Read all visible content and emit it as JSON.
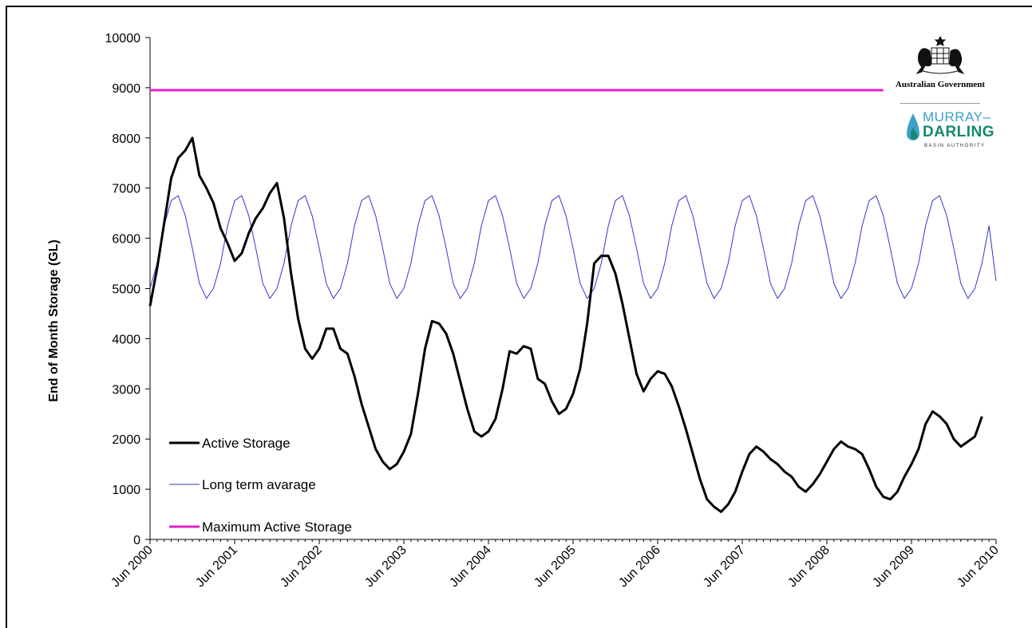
{
  "chart_data": {
    "type": "line",
    "title": "",
    "xlabel": "",
    "ylabel": "End of Month Storage (GL)",
    "ylim": [
      0,
      10000
    ],
    "yticks": [
      "0",
      "1000",
      "2000",
      "3000",
      "4000",
      "5000",
      "6000",
      "7000",
      "8000",
      "9000",
      "10000"
    ],
    "xlim": [
      "2000-06",
      "2010-06"
    ],
    "xticks": [
      "Jun 2000",
      "Jun 2001",
      "Jun 2002",
      "Jun 2003",
      "Jun 2004",
      "Jun 2005",
      "Jun 2006",
      "Jun 2007",
      "Jun 2008",
      "Jun 2009",
      "Jun 2010"
    ],
    "grid": false,
    "legend_position": "bottom-left",
    "series": [
      {
        "name": "Active Storage",
        "color": "#000000",
        "points": [
          [
            "2000-06",
            4650
          ],
          [
            "2000-07",
            5400
          ],
          [
            "2000-08",
            6300
          ],
          [
            "2000-09",
            7200
          ],
          [
            "2000-10",
            7600
          ],
          [
            "2000-11",
            7750
          ],
          [
            "2000-12",
            8000
          ],
          [
            "2001-01",
            7250
          ],
          [
            "2001-02",
            7000
          ],
          [
            "2001-03",
            6700
          ],
          [
            "2001-04",
            6200
          ],
          [
            "2001-05",
            5900
          ],
          [
            "2001-06",
            5550
          ],
          [
            "2001-07",
            5700
          ],
          [
            "2001-08",
            6100
          ],
          [
            "2001-09",
            6400
          ],
          [
            "2001-10",
            6600
          ],
          [
            "2001-11",
            6900
          ],
          [
            "2001-12",
            7100
          ],
          [
            "2002-01",
            6400
          ],
          [
            "2002-02",
            5300
          ],
          [
            "2002-03",
            4400
          ],
          [
            "2002-04",
            3800
          ],
          [
            "2002-05",
            3600
          ],
          [
            "2002-06",
            3800
          ],
          [
            "2002-07",
            4200
          ],
          [
            "2002-08",
            4200
          ],
          [
            "2002-09",
            3800
          ],
          [
            "2002-10",
            3700
          ],
          [
            "2002-11",
            3250
          ],
          [
            "2002-12",
            2700
          ],
          [
            "2003-01",
            2250
          ],
          [
            "2003-02",
            1800
          ],
          [
            "2003-03",
            1550
          ],
          [
            "2003-04",
            1400
          ],
          [
            "2003-05",
            1500
          ],
          [
            "2003-06",
            1750
          ],
          [
            "2003-07",
            2100
          ],
          [
            "2003-08",
            2900
          ],
          [
            "2003-09",
            3800
          ],
          [
            "2003-10",
            4350
          ],
          [
            "2003-11",
            4300
          ],
          [
            "2003-12",
            4100
          ],
          [
            "2004-01",
            3700
          ],
          [
            "2004-02",
            3150
          ],
          [
            "2004-03",
            2600
          ],
          [
            "2004-04",
            2150
          ],
          [
            "2004-05",
            2050
          ],
          [
            "2004-06",
            2150
          ],
          [
            "2004-07",
            2400
          ],
          [
            "2004-08",
            3000
          ],
          [
            "2004-09",
            3750
          ],
          [
            "2004-10",
            3700
          ],
          [
            "2004-11",
            3850
          ],
          [
            "2004-12",
            3800
          ],
          [
            "2005-01",
            3200
          ],
          [
            "2005-02",
            3100
          ],
          [
            "2005-03",
            2750
          ],
          [
            "2005-04",
            2500
          ],
          [
            "2005-05",
            2600
          ],
          [
            "2005-06",
            2900
          ],
          [
            "2005-07",
            3400
          ],
          [
            "2005-08",
            4300
          ],
          [
            "2005-09",
            5500
          ],
          [
            "2005-10",
            5650
          ],
          [
            "2005-11",
            5650
          ],
          [
            "2005-12",
            5300
          ],
          [
            "2006-01",
            4700
          ],
          [
            "2006-02",
            4000
          ],
          [
            "2006-03",
            3300
          ],
          [
            "2006-04",
            2950
          ],
          [
            "2006-05",
            3200
          ],
          [
            "2006-06",
            3350
          ],
          [
            "2006-07",
            3300
          ],
          [
            "2006-08",
            3050
          ],
          [
            "2006-09",
            2650
          ],
          [
            "2006-10",
            2200
          ],
          [
            "2006-11",
            1700
          ],
          [
            "2006-12",
            1200
          ],
          [
            "2007-01",
            800
          ],
          [
            "2007-02",
            650
          ],
          [
            "2007-03",
            550
          ],
          [
            "2007-04",
            700
          ],
          [
            "2007-05",
            950
          ],
          [
            "2007-06",
            1350
          ],
          [
            "2007-07",
            1700
          ],
          [
            "2007-08",
            1850
          ],
          [
            "2007-09",
            1750
          ],
          [
            "2007-10",
            1600
          ],
          [
            "2007-11",
            1500
          ],
          [
            "2007-12",
            1350
          ],
          [
            "2008-01",
            1250
          ],
          [
            "2008-02",
            1050
          ],
          [
            "2008-03",
            950
          ],
          [
            "2008-04",
            1100
          ],
          [
            "2008-05",
            1300
          ],
          [
            "2008-06",
            1550
          ],
          [
            "2008-07",
            1800
          ],
          [
            "2008-08",
            1950
          ],
          [
            "2008-09",
            1850
          ],
          [
            "2008-10",
            1800
          ],
          [
            "2008-11",
            1700
          ],
          [
            "2008-12",
            1400
          ],
          [
            "2009-01",
            1050
          ],
          [
            "2009-02",
            850
          ],
          [
            "2009-03",
            800
          ],
          [
            "2009-04",
            950
          ],
          [
            "2009-05",
            1250
          ],
          [
            "2009-06",
            1500
          ],
          [
            "2009-07",
            1800
          ],
          [
            "2009-08",
            2300
          ],
          [
            "2009-09",
            2550
          ],
          [
            "2009-10",
            2450
          ],
          [
            "2009-11",
            2300
          ],
          [
            "2009-12",
            2000
          ],
          [
            "2010-01",
            1850
          ],
          [
            "2010-02",
            1950
          ],
          [
            "2010-03",
            2050
          ],
          [
            "2010-04",
            2450
          ]
        ]
      },
      {
        "name": "Long term avarage",
        "color": "#3333cc",
        "points": [
          [
            "2000-06",
            5000
          ],
          [
            "2000-07",
            5500
          ],
          [
            "2000-08",
            6250
          ],
          [
            "2000-09",
            6750
          ],
          [
            "2000-10",
            6850
          ],
          [
            "2000-11",
            6450
          ],
          [
            "2000-12",
            5800
          ],
          [
            "2001-01",
            5100
          ],
          [
            "2001-02",
            4800
          ],
          [
            "2001-03",
            5000
          ],
          [
            "2001-04",
            5500
          ],
          [
            "2001-05",
            6250
          ],
          [
            "2001-06",
            6750
          ],
          [
            "2001-07",
            6850
          ],
          [
            "2001-08",
            6450
          ],
          [
            "2001-09",
            5800
          ],
          [
            "2001-10",
            5100
          ],
          [
            "2001-11",
            4800
          ],
          [
            "2001-12",
            5000
          ],
          [
            "2002-01",
            5500
          ],
          [
            "2002-02",
            6250
          ],
          [
            "2002-03",
            6750
          ],
          [
            "2002-04",
            6850
          ],
          [
            "2002-05",
            6450
          ],
          [
            "2002-06",
            5800
          ],
          [
            "2002-07",
            5100
          ],
          [
            "2002-08",
            4800
          ],
          [
            "2002-09",
            5000
          ],
          [
            "2002-10",
            5500
          ],
          [
            "2002-11",
            6250
          ],
          [
            "2002-12",
            6750
          ],
          [
            "2003-01",
            6850
          ],
          [
            "2003-02",
            6450
          ],
          [
            "2003-03",
            5800
          ],
          [
            "2003-04",
            5100
          ],
          [
            "2003-05",
            4800
          ],
          [
            "2003-06",
            5000
          ],
          [
            "2003-07",
            5500
          ],
          [
            "2003-08",
            6250
          ],
          [
            "2003-09",
            6750
          ],
          [
            "2003-10",
            6850
          ],
          [
            "2003-11",
            6450
          ],
          [
            "2003-12",
            5800
          ],
          [
            "2004-01",
            5100
          ],
          [
            "2004-02",
            4800
          ],
          [
            "2004-03",
            5000
          ],
          [
            "2004-04",
            5500
          ],
          [
            "2004-05",
            6250
          ],
          [
            "2004-06",
            6750
          ],
          [
            "2004-07",
            6850
          ],
          [
            "2004-08",
            6450
          ],
          [
            "2004-09",
            5800
          ],
          [
            "2004-10",
            5100
          ],
          [
            "2004-11",
            4800
          ],
          [
            "2004-12",
            5000
          ],
          [
            "2005-01",
            5500
          ],
          [
            "2005-02",
            6250
          ],
          [
            "2005-03",
            6750
          ],
          [
            "2005-04",
            6850
          ],
          [
            "2005-05",
            6450
          ],
          [
            "2005-06",
            5800
          ],
          [
            "2005-07",
            5100
          ],
          [
            "2005-08",
            4800
          ],
          [
            "2005-09",
            5000
          ],
          [
            "2005-10",
            5500
          ],
          [
            "2005-11",
            6250
          ],
          [
            "2005-12",
            6750
          ],
          [
            "2006-01",
            6850
          ],
          [
            "2006-02",
            6450
          ],
          [
            "2006-03",
            5800
          ],
          [
            "2006-04",
            5100
          ],
          [
            "2006-05",
            4800
          ],
          [
            "2006-06",
            5000
          ],
          [
            "2006-07",
            5500
          ],
          [
            "2006-08",
            6250
          ],
          [
            "2006-09",
            6750
          ],
          [
            "2006-10",
            6850
          ],
          [
            "2006-11",
            6450
          ],
          [
            "2006-12",
            5800
          ],
          [
            "2007-01",
            5100
          ],
          [
            "2007-02",
            4800
          ],
          [
            "2007-03",
            5000
          ],
          [
            "2007-04",
            5500
          ],
          [
            "2007-05",
            6250
          ],
          [
            "2007-06",
            6750
          ],
          [
            "2007-07",
            6850
          ],
          [
            "2007-08",
            6450
          ],
          [
            "2007-09",
            5800
          ],
          [
            "2007-10",
            5100
          ],
          [
            "2007-11",
            4800
          ],
          [
            "2007-12",
            5000
          ],
          [
            "2008-01",
            5500
          ],
          [
            "2008-02",
            6250
          ],
          [
            "2008-03",
            6750
          ],
          [
            "2008-04",
            6850
          ],
          [
            "2008-05",
            6450
          ],
          [
            "2008-06",
            5800
          ],
          [
            "2008-07",
            5100
          ],
          [
            "2008-08",
            4800
          ],
          [
            "2008-09",
            5000
          ],
          [
            "2008-10",
            5500
          ],
          [
            "2008-11",
            6250
          ],
          [
            "2008-12",
            6750
          ],
          [
            "2009-01",
            6850
          ],
          [
            "2009-02",
            6450
          ],
          [
            "2009-03",
            5800
          ],
          [
            "2009-04",
            5100
          ],
          [
            "2009-05",
            4800
          ],
          [
            "2009-06",
            5000
          ],
          [
            "2009-07",
            5500
          ],
          [
            "2009-08",
            6250
          ],
          [
            "2009-09",
            6750
          ],
          [
            "2009-10",
            6850
          ],
          [
            "2009-11",
            6450
          ],
          [
            "2009-12",
            5800
          ],
          [
            "2010-01",
            5100
          ],
          [
            "2010-02",
            4800
          ],
          [
            "2010-03",
            5000
          ],
          [
            "2010-04",
            5500
          ],
          [
            "2010-05",
            6250
          ],
          [
            "2010-06",
            5150
          ]
        ]
      },
      {
        "name": "Maximum Active Storage",
        "color": "#e020c8",
        "points": [
          [
            "2000-06",
            8950
          ],
          [
            "2009-02",
            8950
          ]
        ]
      }
    ]
  },
  "logo": {
    "government": "Australian Government",
    "mdba_line1": "MURRAY–",
    "mdba_line2": "DARLING",
    "mdba_line3": "BASIN AUTHORITY"
  }
}
